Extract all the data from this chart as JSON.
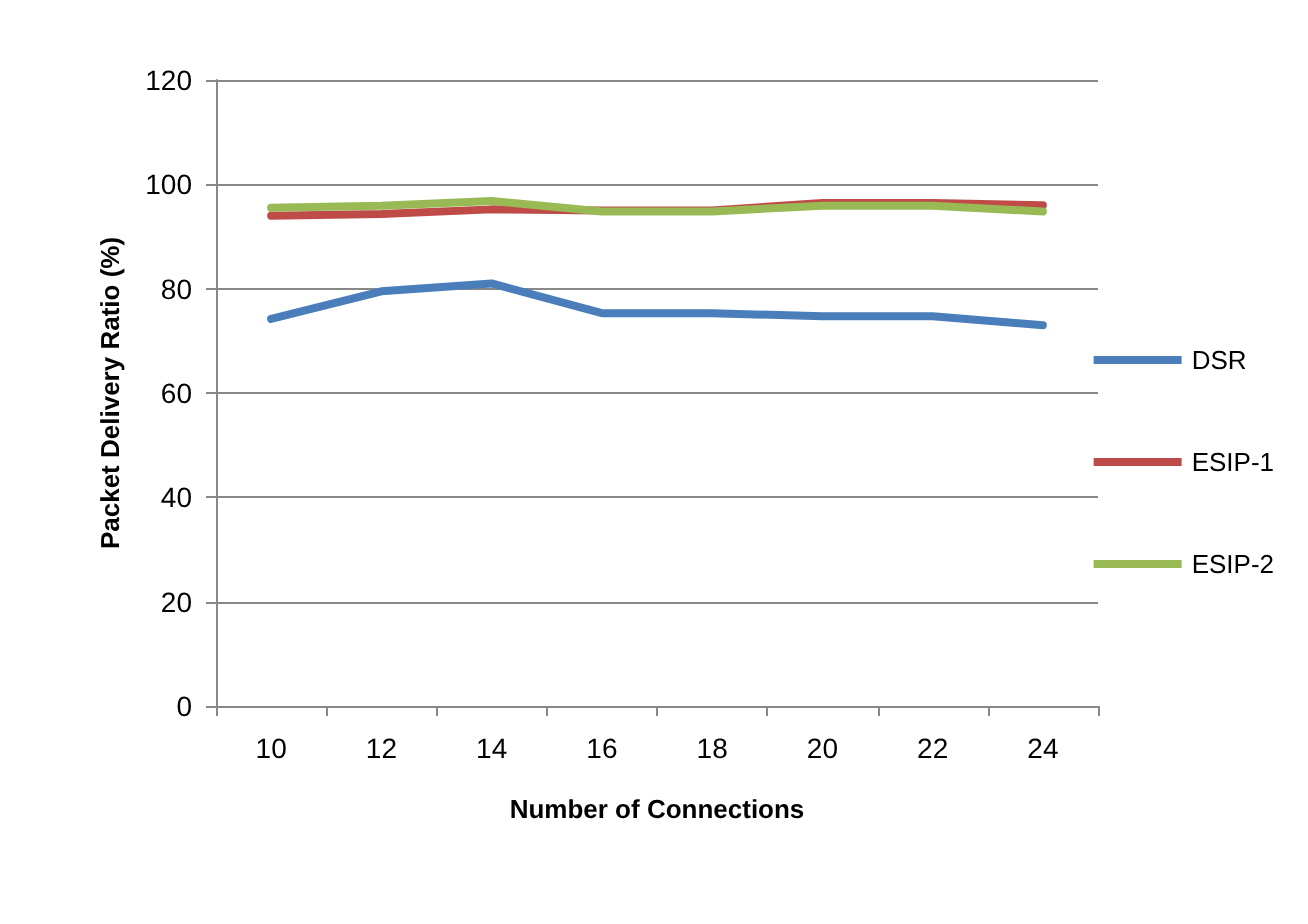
{
  "chart_data": {
    "type": "line",
    "xlabel": "Number of Connections",
    "ylabel": "Packet Delivery Ratio (%)",
    "categories": [
      "10",
      "12",
      "14",
      "16",
      "18",
      "20",
      "22",
      "24"
    ],
    "series": [
      {
        "name": "DSR",
        "color": "#4a7ebb",
        "values": [
          74.2,
          79.5,
          81,
          75.3,
          75.3,
          74.7,
          74.7,
          73
        ]
      },
      {
        "name": "ESIP-1",
        "color": "#be4b48",
        "values": [
          94,
          94.3,
          95.2,
          95,
          95,
          96.4,
          96.4,
          96
        ]
      },
      {
        "name": "ESIP-2",
        "color": "#98b954",
        "values": [
          95.5,
          95.9,
          96.8,
          94.8,
          94.8,
          95.9,
          95.9,
          94.8
        ]
      }
    ],
    "ylim": [
      0,
      120
    ],
    "yticks": [
      0,
      20,
      40,
      60,
      80,
      100,
      120
    ],
    "grid": "y",
    "legend": "right",
    "marker": "none",
    "line_style": "solid"
  }
}
